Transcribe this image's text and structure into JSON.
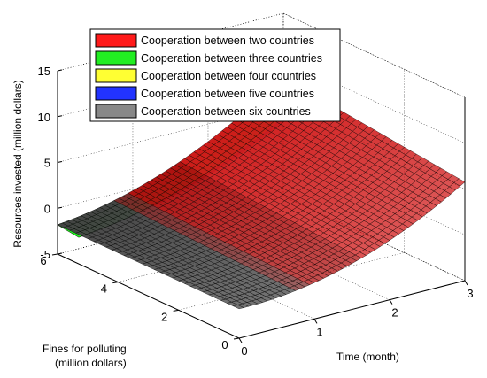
{
  "chart_data": {
    "type": "surface3d",
    "title": "",
    "axes": {
      "x": {
        "label": "Time (month)",
        "ticks": [
          "0",
          "1",
          "2",
          "3"
        ],
        "range": [
          0,
          3
        ]
      },
      "y": {
        "label_line1": "Fines for polluting",
        "label_line2": "(million dollars)",
        "ticks": [
          "0",
          "2",
          "4",
          "6"
        ],
        "range": [
          0,
          6
        ]
      },
      "z": {
        "label": "Resources invested (million dollars)",
        "ticks": [
          "-5",
          "0",
          "5",
          "10",
          "15"
        ],
        "range": [
          -5,
          15
        ]
      }
    },
    "grid": true,
    "legend_position": "top-center",
    "series": [
      {
        "name": "Cooperation between two countries",
        "color": "#ff1a1a",
        "z_at_t0": -1.8,
        "z_at_t3": 8.0
      },
      {
        "name": "Cooperation between three countries",
        "color": "#22ee22",
        "z_at_t0": -1.8,
        "z_at_t3": 7.6
      },
      {
        "name": "Cooperation between four countries",
        "color": "#ffff33",
        "z_at_t0": -1.8,
        "z_at_t3": 7.3
      },
      {
        "name": "Cooperation between five countries",
        "color": "#2233ff",
        "z_at_t0": -1.8,
        "z_at_t3": 7.0
      },
      {
        "name": "Cooperation between six countries",
        "color": "#888888",
        "z_at_t0": -1.8,
        "z_at_t3": 6.7
      }
    ]
  }
}
